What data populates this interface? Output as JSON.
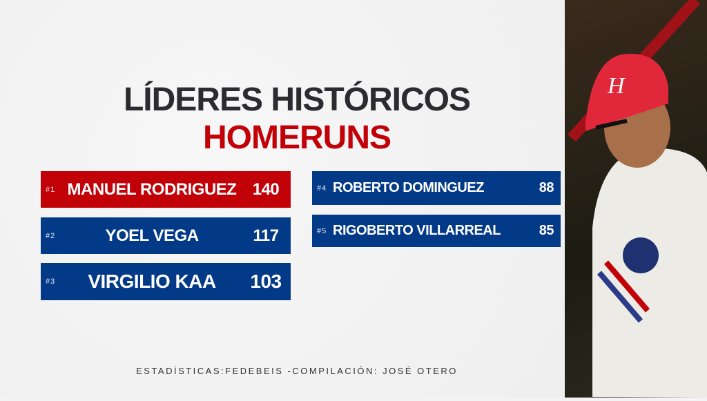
{
  "title": {
    "line1": "LÍDERES HISTÓRICOS",
    "line2": "HOMERUNS"
  },
  "leaders": [
    {
      "rank": "#1",
      "name": "MANUEL RODRIGUEZ",
      "value": "140"
    },
    {
      "rank": "#2",
      "name": "YOEL VEGA",
      "value": "117"
    },
    {
      "rank": "#3",
      "name": "VIRGILIO KAA",
      "value": "103"
    },
    {
      "rank": "#4",
      "name": "ROBERTO DOMINGUEZ",
      "value": "88"
    },
    {
      "rank": "#5",
      "name": "RIGOBERTO VILLARREAL",
      "value": "85"
    }
  ],
  "footer": "ESTADÍSTICAS:FEDEBEIS -COMPILACIÓN: JOSÉ OTERO",
  "colors": {
    "red": "#c10008",
    "blue": "#033a87",
    "title": "#2b2b30"
  },
  "photo": {
    "cap_letter": "H"
  }
}
